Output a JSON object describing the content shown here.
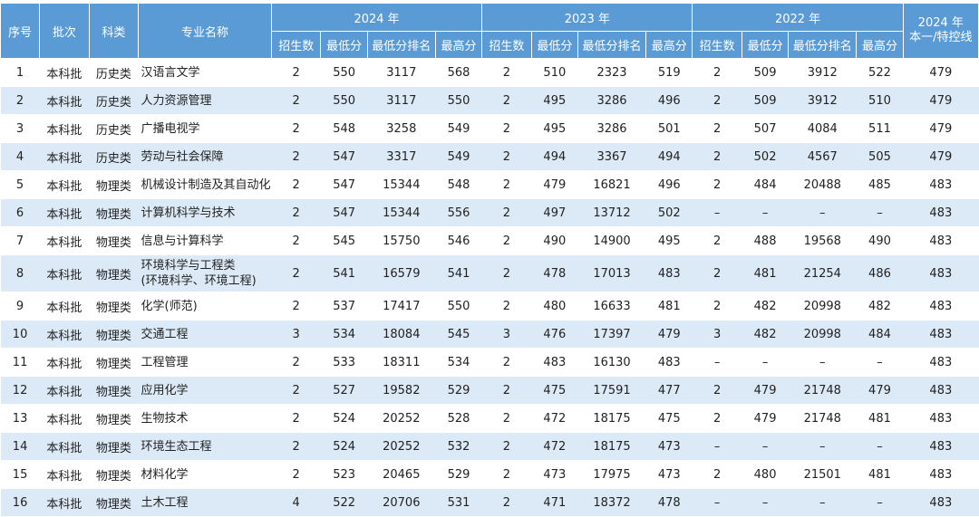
{
  "headers": {
    "index": "序号",
    "batch": "批次",
    "subject": "科类",
    "major": "专业名称",
    "years": [
      "2024 年",
      "2023 年",
      "2022 年"
    ],
    "sub": [
      "招生数",
      "最低分",
      "最低分排名",
      "最高分"
    ],
    "control_line": [
      "2024 年",
      "本一/特控线"
    ]
  },
  "rows": [
    {
      "idx": "1",
      "batch": "本科批",
      "subject": "历史类",
      "name": [
        "汉语言文学"
      ],
      "y2024": [
        "2",
        "550",
        "3117",
        "568"
      ],
      "y2023": [
        "2",
        "510",
        "2323",
        "519"
      ],
      "y2022": [
        "2",
        "509",
        "3912",
        "522"
      ],
      "line": "479"
    },
    {
      "idx": "2",
      "batch": "本科批",
      "subject": "历史类",
      "name": [
        "人力资源管理"
      ],
      "y2024": [
        "2",
        "550",
        "3117",
        "550"
      ],
      "y2023": [
        "2",
        "495",
        "3286",
        "496"
      ],
      "y2022": [
        "2",
        "509",
        "3912",
        "510"
      ],
      "line": "479"
    },
    {
      "idx": "3",
      "batch": "本科批",
      "subject": "历史类",
      "name": [
        "广播电视学"
      ],
      "y2024": [
        "2",
        "548",
        "3258",
        "549"
      ],
      "y2023": [
        "2",
        "495",
        "3286",
        "501"
      ],
      "y2022": [
        "2",
        "507",
        "4084",
        "511"
      ],
      "line": "479"
    },
    {
      "idx": "4",
      "batch": "本科批",
      "subject": "历史类",
      "name": [
        "劳动与社会保障"
      ],
      "y2024": [
        "2",
        "547",
        "3317",
        "549"
      ],
      "y2023": [
        "2",
        "494",
        "3367",
        "494"
      ],
      "y2022": [
        "2",
        "502",
        "4567",
        "505"
      ],
      "line": "479"
    },
    {
      "idx": "5",
      "batch": "本科批",
      "subject": "物理类",
      "name": [
        "机械设计制造及其自动化"
      ],
      "y2024": [
        "2",
        "547",
        "15344",
        "548"
      ],
      "y2023": [
        "2",
        "479",
        "16821",
        "496"
      ],
      "y2022": [
        "2",
        "484",
        "20488",
        "485"
      ],
      "line": "483"
    },
    {
      "idx": "6",
      "batch": "本科批",
      "subject": "物理类",
      "name": [
        "计算机科学与技术"
      ],
      "y2024": [
        "2",
        "547",
        "15344",
        "556"
      ],
      "y2023": [
        "2",
        "497",
        "13712",
        "502"
      ],
      "y2022": [
        "–",
        "–",
        "–",
        "–"
      ],
      "line": "483"
    },
    {
      "idx": "7",
      "batch": "本科批",
      "subject": "物理类",
      "name": [
        "信息与计算科学"
      ],
      "y2024": [
        "2",
        "545",
        "15750",
        "546"
      ],
      "y2023": [
        "2",
        "490",
        "14900",
        "495"
      ],
      "y2022": [
        "2",
        "488",
        "19568",
        "490"
      ],
      "line": "483"
    },
    {
      "idx": "8",
      "batch": "本科批",
      "subject": "物理类",
      "name": [
        "环境科学与工程类",
        "(环境科学、环境工程)"
      ],
      "y2024": [
        "2",
        "541",
        "16579",
        "541"
      ],
      "y2023": [
        "2",
        "478",
        "17013",
        "483"
      ],
      "y2022": [
        "2",
        "481",
        "21254",
        "486"
      ],
      "line": "483"
    },
    {
      "idx": "9",
      "batch": "本科批",
      "subject": "物理类",
      "name": [
        "化学(师范)"
      ],
      "y2024": [
        "2",
        "537",
        "17417",
        "550"
      ],
      "y2023": [
        "2",
        "480",
        "16633",
        "481"
      ],
      "y2022": [
        "2",
        "482",
        "20998",
        "482"
      ],
      "line": "483"
    },
    {
      "idx": "10",
      "batch": "本科批",
      "subject": "物理类",
      "name": [
        "交通工程"
      ],
      "y2024": [
        "3",
        "534",
        "18084",
        "545"
      ],
      "y2023": [
        "3",
        "476",
        "17397",
        "479"
      ],
      "y2022": [
        "3",
        "482",
        "20998",
        "484"
      ],
      "line": "483"
    },
    {
      "idx": "11",
      "batch": "本科批",
      "subject": "物理类",
      "name": [
        "工程管理"
      ],
      "y2024": [
        "2",
        "533",
        "18311",
        "534"
      ],
      "y2023": [
        "2",
        "483",
        "16130",
        "483"
      ],
      "y2022": [
        "–",
        "–",
        "–",
        "–"
      ],
      "line": "483"
    },
    {
      "idx": "12",
      "batch": "本科批",
      "subject": "物理类",
      "name": [
        "应用化学"
      ],
      "y2024": [
        "2",
        "527",
        "19582",
        "529"
      ],
      "y2023": [
        "2",
        "475",
        "17591",
        "477"
      ],
      "y2022": [
        "2",
        "479",
        "21748",
        "479"
      ],
      "line": "483"
    },
    {
      "idx": "13",
      "batch": "本科批",
      "subject": "物理类",
      "name": [
        "生物技术"
      ],
      "y2024": [
        "2",
        "524",
        "20252",
        "528"
      ],
      "y2023": [
        "2",
        "472",
        "18175",
        "475"
      ],
      "y2022": [
        "2",
        "479",
        "21748",
        "481"
      ],
      "line": "483"
    },
    {
      "idx": "14",
      "batch": "本科批",
      "subject": "物理类",
      "name": [
        "环境生态工程"
      ],
      "y2024": [
        "2",
        "524",
        "20252",
        "532"
      ],
      "y2023": [
        "2",
        "472",
        "18175",
        "473"
      ],
      "y2022": [
        "–",
        "–",
        "–",
        "–"
      ],
      "line": "483"
    },
    {
      "idx": "15",
      "batch": "本科批",
      "subject": "物理类",
      "name": [
        "材料化学"
      ],
      "y2024": [
        "2",
        "523",
        "20465",
        "529"
      ],
      "y2023": [
        "2",
        "473",
        "17975",
        "473"
      ],
      "y2022": [
        "2",
        "480",
        "21501",
        "481"
      ],
      "line": "483"
    },
    {
      "idx": "16",
      "batch": "本科批",
      "subject": "物理类",
      "name": [
        "土木工程"
      ],
      "y2024": [
        "4",
        "522",
        "20706",
        "531"
      ],
      "y2023": [
        "2",
        "471",
        "18372",
        "478"
      ],
      "y2022": [
        "–",
        "–",
        "–",
        "–"
      ],
      "line": "483"
    }
  ]
}
